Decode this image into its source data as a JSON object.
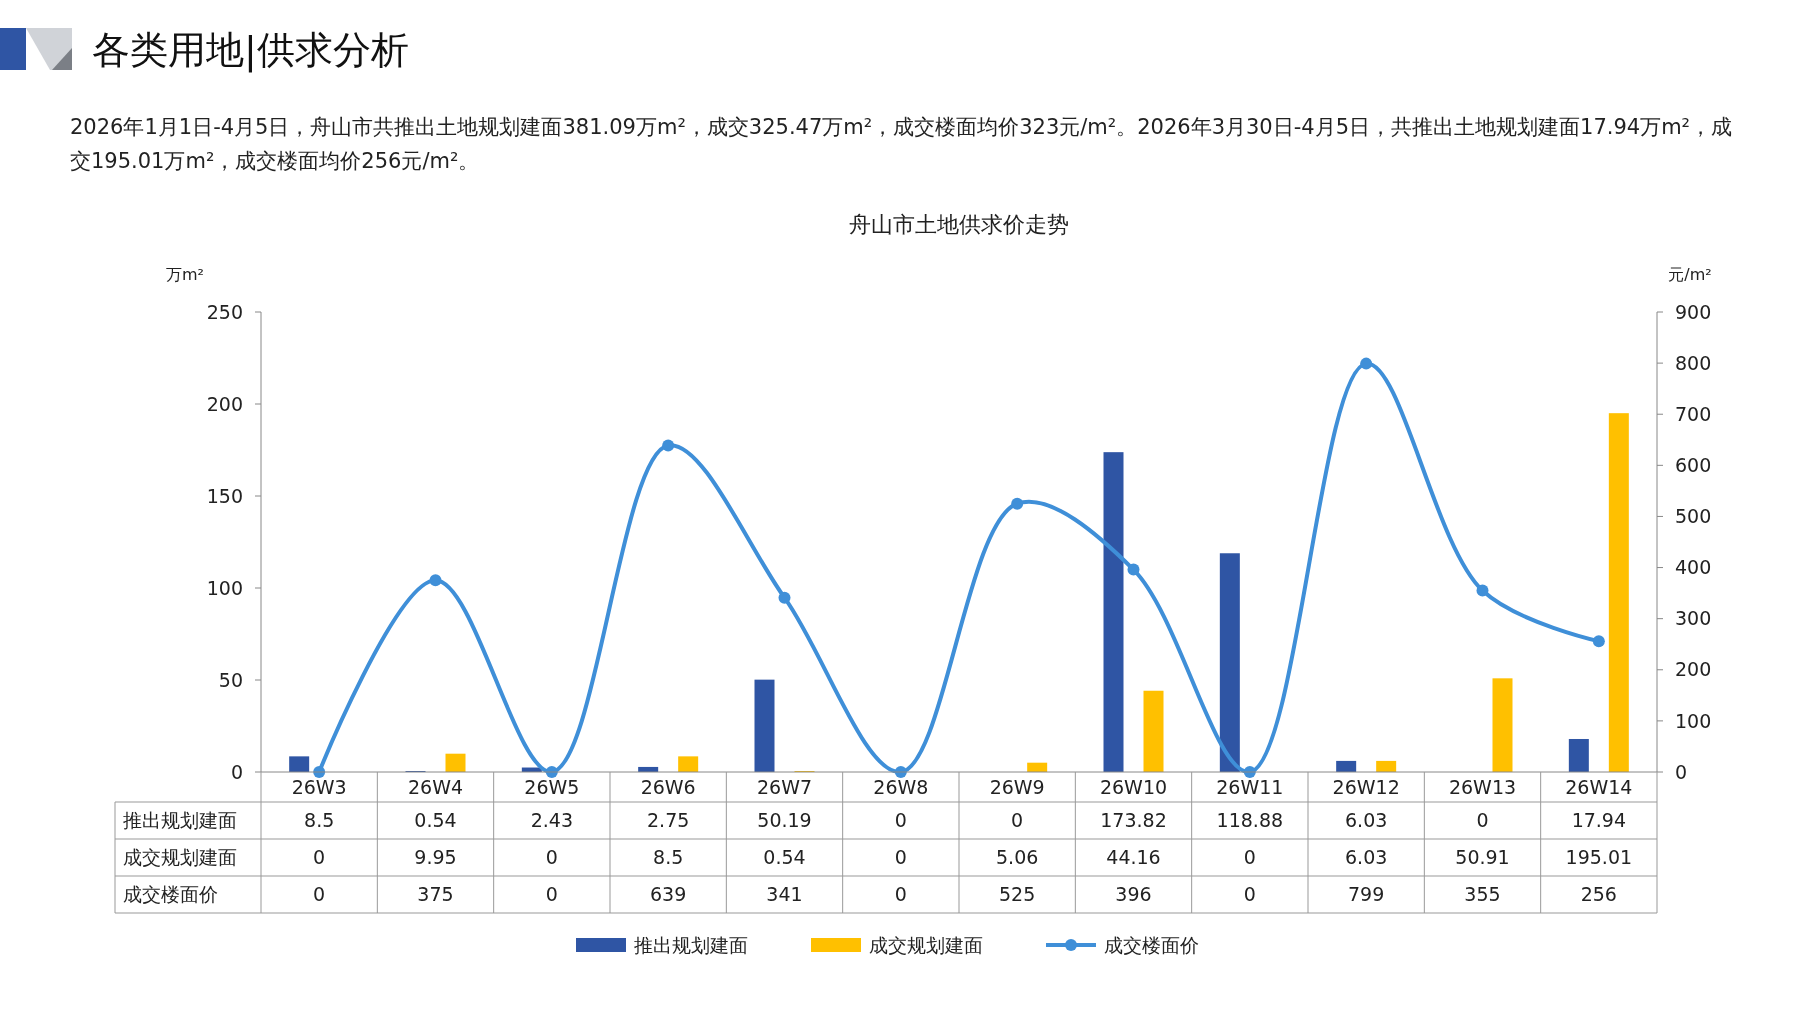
{
  "chart_data": {
    "type": "bar",
    "title": "舟山市土地供求价走势",
    "subtitle": "2026年1月1日-4月5日，舟山市共推出土地规划建面381.09万m²，成交325.47万m²，成交楼面均价323元/m²。2026年3月30日-4月5日，共推出土地规划建面17.94万m²，成交195.01万m²，成交楼面均价256元/m²。",
    "annotations": [
      "各类用地|供求分析"
    ],
    "ylabel": "万m²",
    "y2label": "元/m²",
    "categories": [
      "26W3",
      "26W4",
      "26W5",
      "26W6",
      "26W7",
      "26W8",
      "26W9",
      "26W10",
      "26W11",
      "26W12",
      "26W13",
      "26W14"
    ],
    "series": [
      {
        "name": "推出规划建面",
        "color": "#2f55a4",
        "values": [
          8.5,
          0.54,
          2.43,
          2.75,
          50.19,
          0,
          0,
          173.82,
          118.88,
          6.03,
          0,
          17.94
        ]
      },
      {
        "name": "成交规划建面",
        "color": "#ffc000",
        "values": [
          0,
          9.95,
          0,
          8.5,
          0.54,
          0,
          5.06,
          44.16,
          0,
          6.03,
          50.91,
          195.01
        ]
      },
      {
        "name": "成交楼面价",
        "color": "#3f8fd8",
        "type": "line",
        "axis": "y2",
        "marker": "circle",
        "values": [
          0,
          375,
          0,
          639,
          341,
          0,
          525,
          396,
          0,
          799,
          355,
          256
        ]
      }
    ],
    "ylim": [
      0,
      250
    ],
    "yticks": [
      0,
      50,
      100,
      150,
      200,
      250
    ],
    "y2lim": [
      0,
      900
    ],
    "y2ticks": [
      0,
      100,
      200,
      300,
      400,
      500,
      600,
      700,
      800,
      900
    ],
    "data_labels": true,
    "legend": "bottom",
    "grid": false
  }
}
